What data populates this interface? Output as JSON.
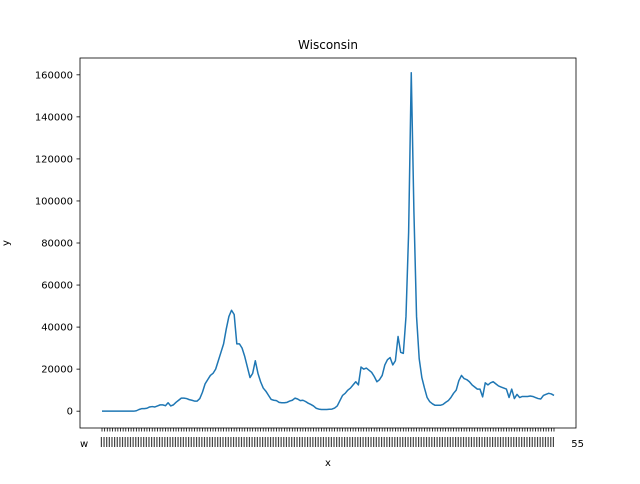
{
  "chart_data": {
    "type": "line",
    "title": "Wisconsin",
    "xlabel": "x",
    "ylabel": "y",
    "ylim": [
      -8000,
      168000
    ],
    "yticks": [
      0,
      20000,
      40000,
      60000,
      80000,
      100000,
      120000,
      140000,
      160000
    ],
    "ytick_labels": [
      "0",
      "20000",
      "40000",
      "60000",
      "80000",
      "100000",
      "120000",
      "140000",
      "160000"
    ],
    "x_tick_labels_legible": false,
    "x_tick_label_fragments": [
      "w",
      "5",
      "5"
    ],
    "line_color": "#1f77b4",
    "series": [
      {
        "values": [
          0,
          0,
          0,
          0,
          0,
          0,
          0,
          0,
          0,
          0,
          0,
          0,
          0,
          200,
          800,
          1200,
          1200,
          1400,
          2000,
          2200,
          2000,
          2500,
          3000,
          3000,
          2600,
          4000,
          2500,
          3000,
          4200,
          5200,
          6200,
          6200,
          6000,
          5500,
          5200,
          4800,
          4800,
          6000,
          9000,
          13000,
          15000,
          17000,
          18000,
          20000,
          24000,
          28000,
          32000,
          39000,
          45000,
          48000,
          46000,
          32000,
          32000,
          30000,
          26000,
          21000,
          16000,
          18000,
          24000,
          18000,
          14000,
          11000,
          9500,
          7500,
          5600,
          5200,
          5000,
          4200,
          4000,
          4000,
          4200,
          4800,
          5200,
          6200,
          5800,
          5000,
          5200,
          4600,
          3800,
          3200,
          2500,
          1400,
          1000,
          800,
          800,
          800,
          900,
          1000,
          1500,
          2500,
          5000,
          7500,
          8500,
          10000,
          11000,
          12500,
          14000,
          12500,
          21000,
          20000,
          20500,
          19500,
          18500,
          16500,
          14000,
          15000,
          17000,
          22000,
          24500,
          25500,
          22000,
          24000,
          35500,
          28000,
          27500,
          45000,
          85000,
          161000,
          95000,
          45000,
          25000,
          16000,
          11000,
          6500,
          4500,
          3500,
          2800,
          2800,
          2800,
          3200,
          4200,
          5000,
          6500,
          8500,
          10000,
          14500,
          17000,
          15500,
          15000,
          14000,
          12500,
          11500,
          10500,
          10500,
          6800,
          13500,
          12500,
          13500,
          14000,
          13000,
          12000,
          11500,
          11000,
          10500,
          6500,
          10500,
          6000,
          8000,
          6500,
          7000,
          7000,
          7000,
          7200,
          7000,
          6500,
          6000,
          5800,
          7500,
          8000,
          8500,
          8200,
          7500
        ]
      }
    ]
  }
}
